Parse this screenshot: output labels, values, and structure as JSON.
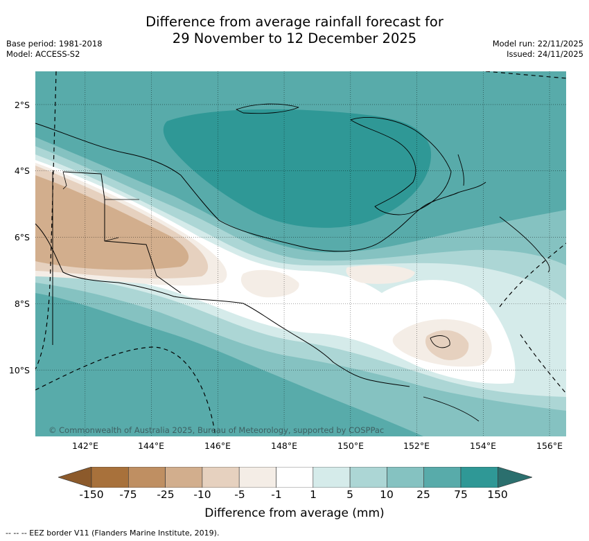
{
  "title_line1": "Difference from average rainfall forecast for",
  "title_line2": "29 November to 12 December 2025",
  "base_period": "Base period: 1981-2018",
  "model": "Model: ACCESS-S2",
  "model_run": "Model run: 22/11/2025",
  "issued": "Issued: 24/11/2025",
  "lat_labels": [
    "2°S",
    "4°S",
    "6°S",
    "8°S",
    "10°S"
  ],
  "lon_labels": [
    "142°E",
    "144°E",
    "146°E",
    "148°E",
    "150°E",
    "152°E",
    "154°E",
    "156°E"
  ],
  "copyright": "© Commonwealth of Australia 2025, Bureau of Meteorology, supported by COSPPac",
  "colorbar": {
    "ticks": [
      "-150",
      "-75",
      "-25",
      "-10",
      "-5",
      "-1",
      "1",
      "5",
      "10",
      "25",
      "75",
      "150"
    ],
    "colors": [
      "#a8713b",
      "#bf8f62",
      "#d2ae8d",
      "#e6d1bf",
      "#f4ede6",
      "#ffffff",
      "#d5ebea",
      "#acd6d5",
      "#85c2c1",
      "#58abaa",
      "#2f9896"
    ],
    "extend_low_color": "#8c5a2b",
    "extend_high_color": "#2b6f6e",
    "label": "Difference from average (mm)"
  },
  "footnote": "--  --  -- EEZ border V11 (Flanders Marine Institute, 2019)."
}
